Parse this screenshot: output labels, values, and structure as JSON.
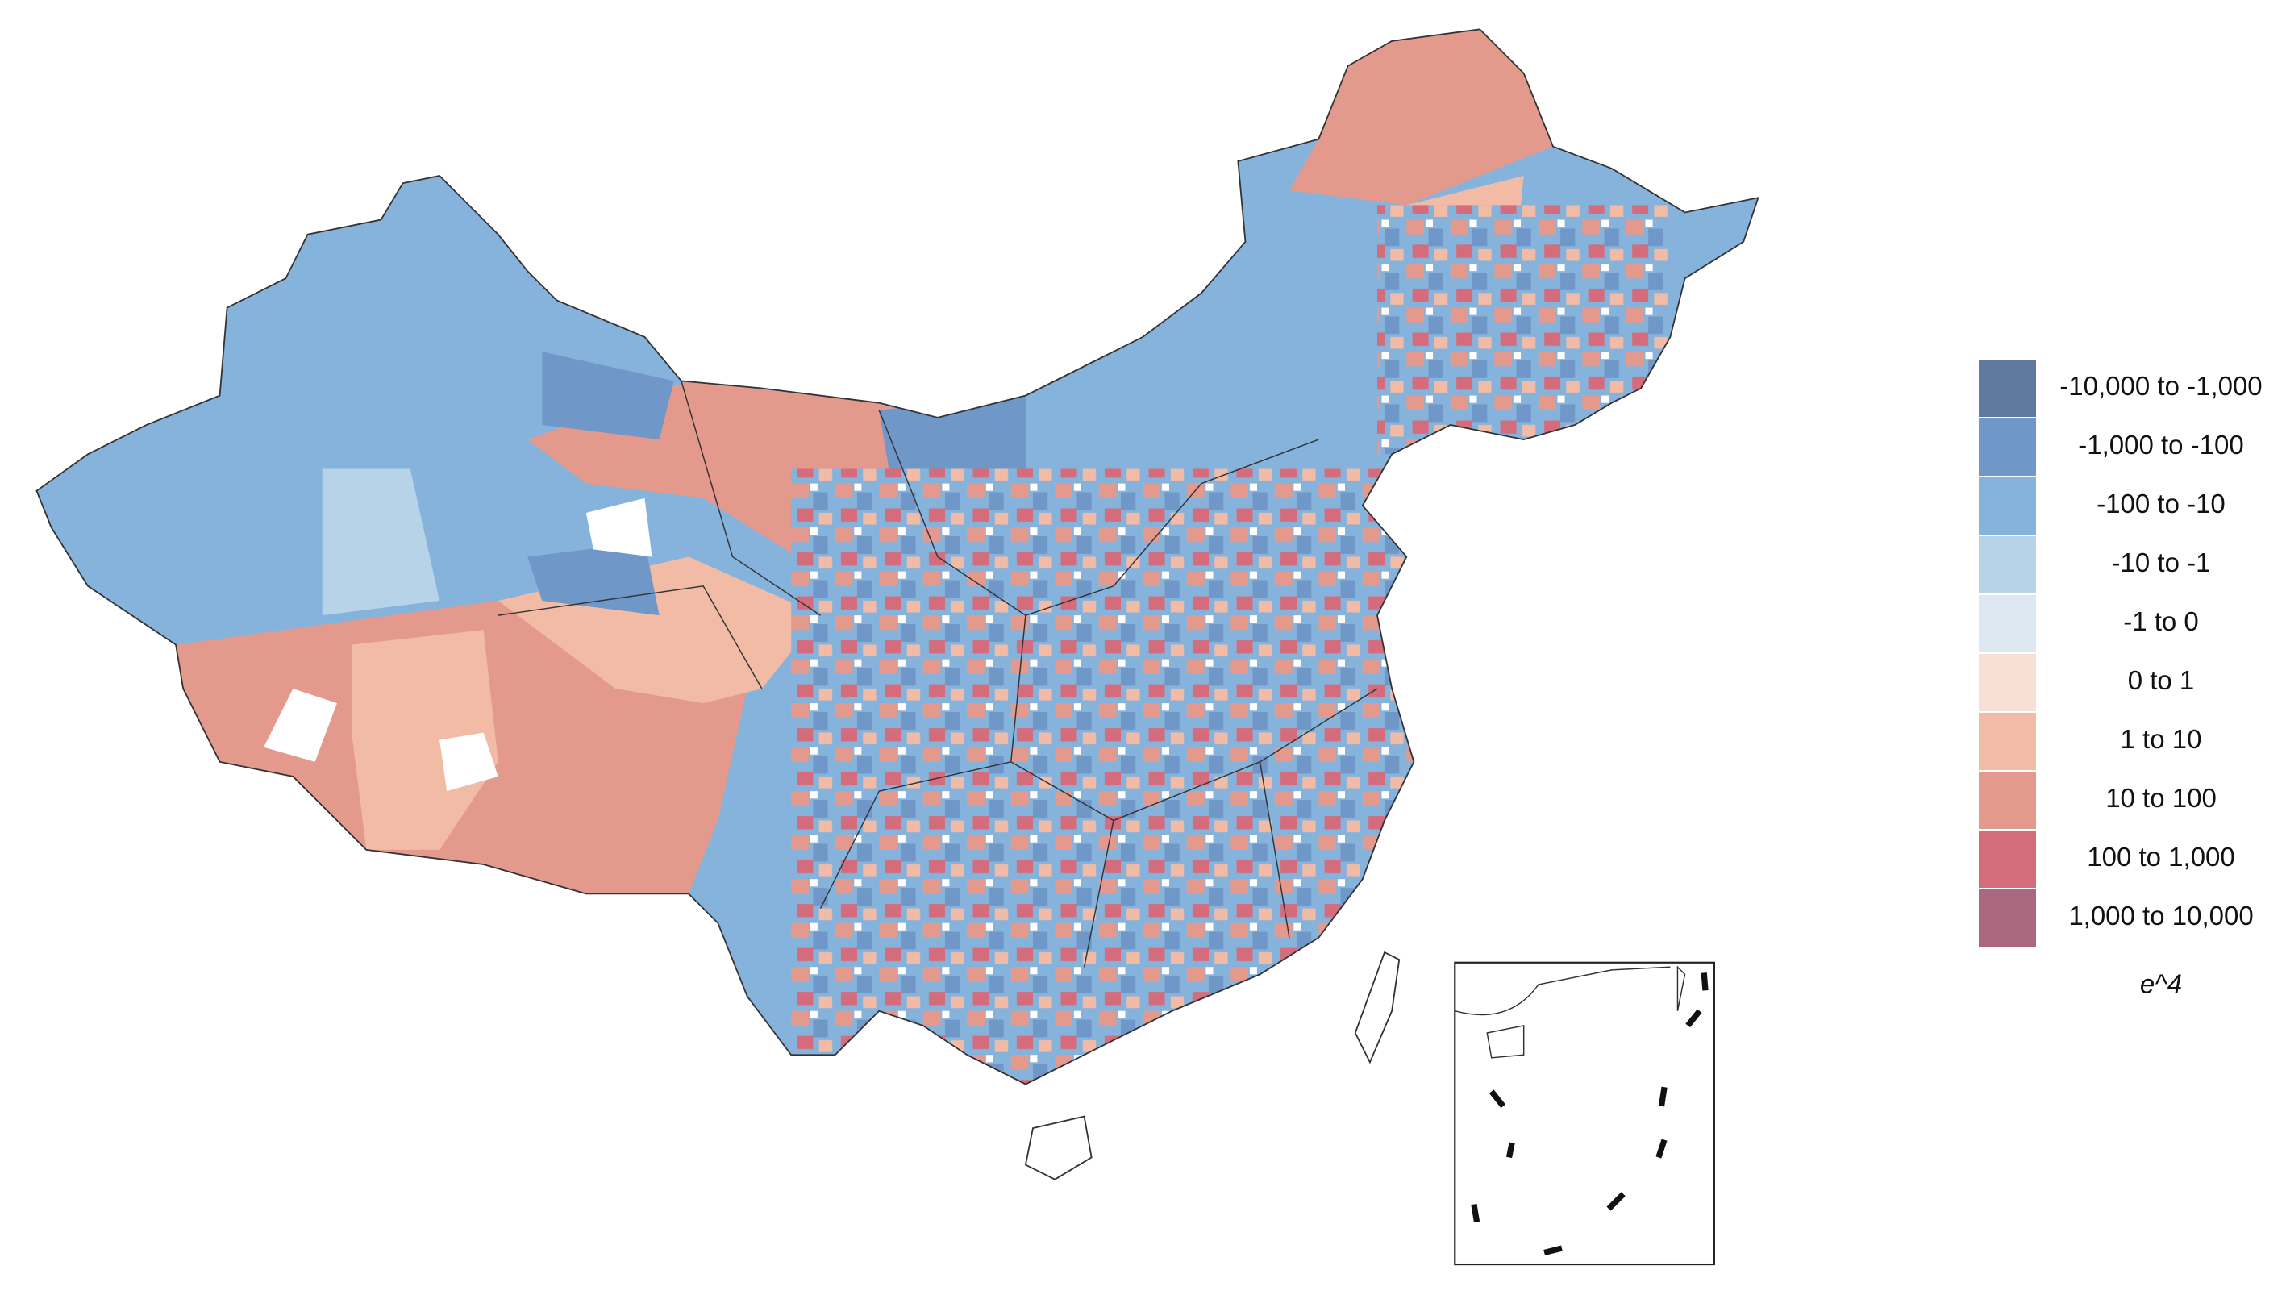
{
  "legend": {
    "items": [
      {
        "label": "-10,000 to -1,000",
        "color": "#5f7a9e"
      },
      {
        "label": "-1,000 to -100",
        "color": "#6f97c8"
      },
      {
        "label": "-100 to -10",
        "color": "#86b3dc"
      },
      {
        "label": "-10 to -1",
        "color": "#b6d3e8"
      },
      {
        "label": "-1 to 0",
        "color": "#dde8f1"
      },
      {
        "label": "0 to 1",
        "color": "#f8e0d6"
      },
      {
        "label": "1 to 10",
        "color": "#f2bba5"
      },
      {
        "label": "10 to 100",
        "color": "#e39a8d"
      },
      {
        "label": "100 to 1,000",
        "color": "#d56c7b"
      },
      {
        "label": "1,000 to 10,000",
        "color": "#a9687e"
      }
    ],
    "title": "e^4"
  }
}
